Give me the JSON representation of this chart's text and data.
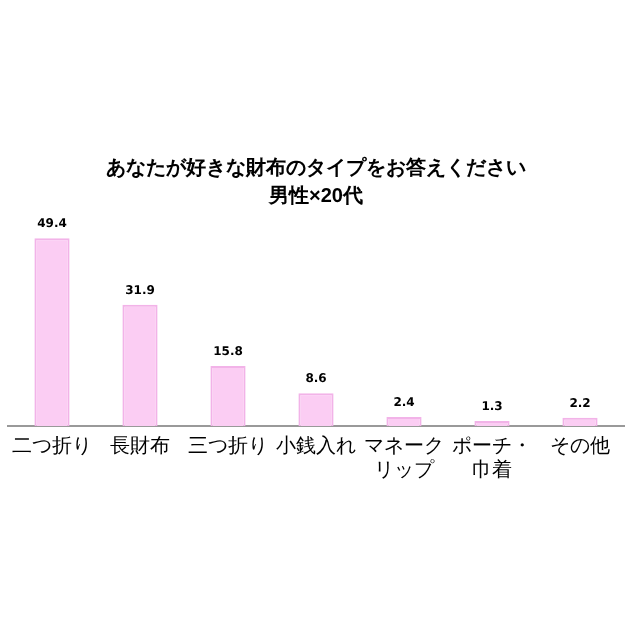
{
  "chart_data": {
    "type": "bar",
    "title": "あなたが好きな財布のタイプをお答えください",
    "subtitle": "男性×20代",
    "categories": [
      "二つ折り",
      "長財布",
      "三つ折り",
      "小銭入れ",
      "マネークリップ",
      "ポーチ・巾着",
      "その他"
    ],
    "values": [
      49.4,
      31.9,
      15.8,
      8.6,
      2.4,
      1.3,
      2.2
    ],
    "color": "#fbcdf3",
    "data_labels": true,
    "tick_labels": "x",
    "grid": false,
    "legend": false
  }
}
